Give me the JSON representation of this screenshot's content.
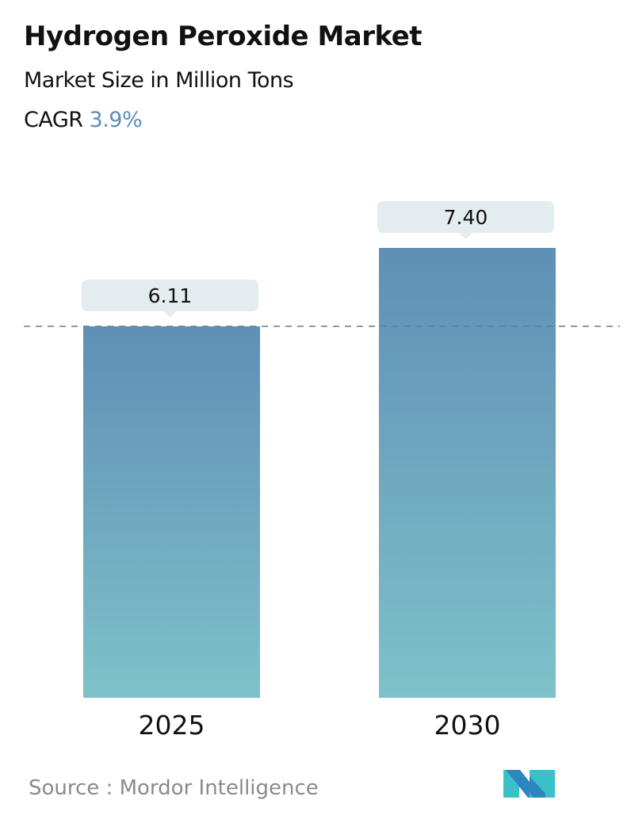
{
  "header": {
    "title": "Hydrogen Peroxide Market",
    "subtitle": "Market Size in Million Tons",
    "cagr_label": "CAGR",
    "cagr_value": "3.9%"
  },
  "source": "Source :  Mordor Intelligence",
  "logo_text": "Mordor Intelligence",
  "colors": {
    "bar_top": "#5f8fb6",
    "bar_bottom": "#7fc1c9",
    "label_bg": "#e3ecef",
    "accent": "#5b8db8",
    "dashed_line": "#5d7f9c"
  },
  "chart_data": {
    "type": "bar",
    "title": "Hydrogen Peroxide Market",
    "subtitle": "Market Size in Million Tons",
    "categories": [
      "2025",
      "2030"
    ],
    "values": [
      6.11,
      7.4
    ],
    "value_labels": [
      "6.11",
      "7.40"
    ],
    "reference_line": {
      "value": 6.11,
      "style": "dashed"
    },
    "ylim": [
      0,
      7.4
    ],
    "grid": false
  }
}
